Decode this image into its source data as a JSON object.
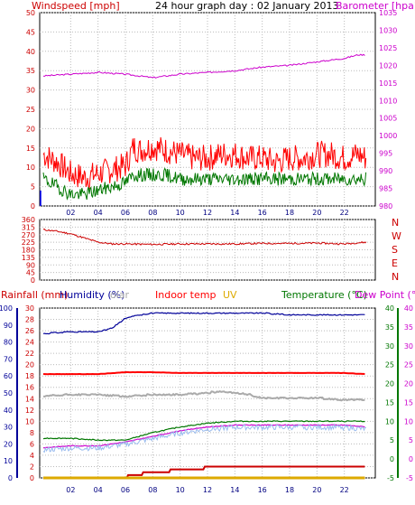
{
  "top_header": {
    "windspeed_label": "Windspeed [mph]",
    "title": "24 hour graph day : 02 January 2013",
    "barometer_label": "Barometer [hpa]"
  },
  "dir_labels": [
    "N",
    "W",
    "S",
    "E",
    "N"
  ],
  "bottom_header": {
    "rainfall_label": "Rainfall (mm)",
    "humidity_label": "Humidity (%)",
    "solar_label": "olar",
    "indoor_label": "Indoor temp",
    "uv_label": "UV",
    "temperature_label": "Temperature (°C)",
    "dewpoint_label": "Dew Point (°C)"
  },
  "colors": {
    "wind_gust": "#ff0000",
    "wind_avg": "#007700",
    "wind_axis": "#cc0000",
    "barometer": "#cc00cc",
    "direction": "#cc0000",
    "rain": "#cc0000",
    "humidity": "#000099",
    "solar": "#aaaaaa",
    "indoor": "#ff0000",
    "uv": "#ddaa00",
    "temperature": "#007700",
    "dewpoint": "#cc00cc",
    "hour_axis": "#000080"
  },
  "chart_data": [
    {
      "type": "line",
      "x_ticks": [
        "02",
        "04",
        "06",
        "08",
        "10",
        "12",
        "14",
        "16",
        "18",
        "20",
        "22"
      ],
      "y_left": {
        "min": 0,
        "max": 50,
        "ticks": [
          0,
          5,
          10,
          15,
          20,
          25,
          30,
          35,
          40,
          45,
          50
        ]
      },
      "y_right": {
        "min": 980,
        "max": 1035,
        "ticks": [
          980,
          985,
          990,
          995,
          1000,
          1005,
          1010,
          1015,
          1020,
          1025,
          1030,
          1035
        ]
      },
      "series": [
        {
          "name": "Windspeed",
          "axis": "left",
          "kind": "gust",
          "x": [
            0,
            1,
            2,
            3,
            4,
            5,
            6,
            6.6,
            7,
            8,
            9,
            10,
            11,
            12,
            13,
            14,
            15,
            16,
            17,
            18,
            19,
            20,
            21,
            22,
            23,
            23.6
          ],
          "values": [
            13,
            11,
            8,
            7,
            8,
            9,
            10,
            15,
            14,
            15,
            14,
            13,
            12,
            12,
            13,
            13,
            12,
            12,
            11,
            12,
            12,
            13,
            13,
            12,
            13,
            12
          ]
        },
        {
          "name": "",
          "axis": "left",
          "kind": "avg",
          "x": [
            0,
            1,
            2,
            3,
            4,
            5,
            6,
            6.6,
            7,
            8,
            9,
            10,
            11,
            12,
            13,
            14,
            15,
            16,
            17,
            18,
            19,
            20,
            21,
            22,
            23,
            23.6
          ],
          "values": [
            7,
            5,
            3,
            3,
            4,
            5,
            6,
            8,
            8,
            8,
            8,
            7,
            7,
            7,
            7,
            7,
            7,
            7,
            7,
            7,
            7,
            7,
            7,
            7,
            7,
            7
          ]
        },
        {
          "name": "Barometer",
          "axis": "right",
          "x": [
            0,
            2,
            4,
            6,
            7,
            8,
            9,
            10,
            12,
            14,
            16,
            18,
            20,
            22,
            23,
            23.6
          ],
          "values": [
            1017,
            1017.5,
            1018,
            1017.5,
            1017,
            1016.5,
            1017,
            1017.5,
            1018,
            1018.5,
            1019.5,
            1020,
            1021,
            1022,
            1023,
            1023
          ]
        }
      ]
    },
    {
      "type": "line",
      "x_ticks": [],
      "y_left": {
        "min": 0,
        "max": 360,
        "ticks": [
          0,
          45,
          90,
          135,
          180,
          225,
          270,
          315,
          360
        ]
      },
      "series": [
        {
          "name": "Direction",
          "x": [
            0,
            1,
            2,
            3,
            4,
            5,
            6,
            8,
            10,
            12,
            14,
            16,
            18,
            20,
            22,
            23,
            23.6
          ],
          "values": [
            300,
            290,
            275,
            250,
            225,
            215,
            215,
            212,
            215,
            215,
            215,
            218,
            218,
            220,
            215,
            222,
            225
          ]
        }
      ]
    },
    {
      "type": "line",
      "x_ticks": [
        "02",
        "04",
        "06",
        "08",
        "10",
        "12",
        "14",
        "16",
        "18",
        "20",
        "22"
      ],
      "y_humidity": {
        "min": 0,
        "max": 100,
        "ticks": [
          0,
          10,
          20,
          30,
          40,
          50,
          60,
          70,
          80,
          90,
          100
        ]
      },
      "y_rain": {
        "min": 0,
        "max": 30,
        "ticks": [
          0,
          2,
          4,
          6,
          8,
          10,
          12,
          14,
          16,
          18,
          20,
          22,
          24,
          26,
          28,
          30
        ]
      },
      "y_temp_right": {
        "min": -5,
        "max": 40,
        "ticks": [
          -5,
          0,
          5,
          10,
          15,
          20,
          25,
          30,
          35,
          40
        ]
      },
      "series": [
        {
          "name": "Humidity",
          "axis": "humidity",
          "x": [
            0,
            2,
            4,
            5,
            6,
            7,
            8,
            10,
            12,
            14,
            16,
            18,
            20,
            22,
            23.6
          ],
          "values": [
            85,
            86,
            86,
            88,
            94,
            96,
            97,
            97,
            97,
            97,
            97,
            96,
            96,
            96,
            96
          ]
        },
        {
          "name": "Indoor temp",
          "axis": "temp",
          "x": [
            0,
            4,
            6,
            8,
            10,
            12,
            14,
            16,
            18,
            20,
            22,
            23.6
          ],
          "values": [
            22.5,
            22.5,
            23,
            23,
            22.8,
            22.8,
            22.8,
            22.8,
            22.8,
            22.8,
            22.8,
            22.5
          ]
        },
        {
          "name": "Solar",
          "axis": "humidity",
          "x": [
            0,
            2,
            4,
            6,
            8,
            10,
            12,
            13,
            14,
            15,
            16,
            18,
            20,
            22,
            23.6
          ],
          "values": [
            48,
            49,
            49,
            48,
            49,
            49,
            50,
            51,
            50,
            49,
            47,
            47,
            47,
            46,
            46
          ]
        },
        {
          "name": "Temperature",
          "axis": "temp",
          "x": [
            0,
            2,
            4,
            6,
            8,
            10,
            12,
            14,
            16,
            18,
            20,
            22,
            23.6
          ],
          "values": [
            5.5,
            5.5,
            5,
            5,
            7,
            8.5,
            9.5,
            10,
            10,
            10,
            10,
            10,
            10
          ]
        },
        {
          "name": "Dew Point",
          "axis": "temp",
          "x": [
            0,
            2,
            4,
            6,
            8,
            10,
            12,
            14,
            16,
            18,
            20,
            22,
            23.6
          ],
          "values": [
            3,
            3.5,
            3.5,
            4.5,
            6,
            7.5,
            8.5,
            9,
            9,
            9,
            9,
            9,
            8.5
          ]
        },
        {
          "name": "Rainfall",
          "axis": "rain",
          "x": [
            0,
            5,
            6,
            6.5,
            7,
            7.5,
            8,
            9,
            10,
            11,
            12,
            14,
            16,
            18,
            20,
            22,
            23.6
          ],
          "values": [
            0,
            0,
            0.2,
            0.4,
            0.6,
            0.9,
            1.0,
            1.2,
            1.4,
            1.6,
            1.8,
            1.8,
            1.8,
            1.8,
            1.8,
            1.8,
            1.8
          ]
        },
        {
          "name": "UV",
          "axis": "rain",
          "x": [
            0,
            23.6
          ],
          "values": [
            0,
            0
          ]
        }
      ]
    }
  ]
}
